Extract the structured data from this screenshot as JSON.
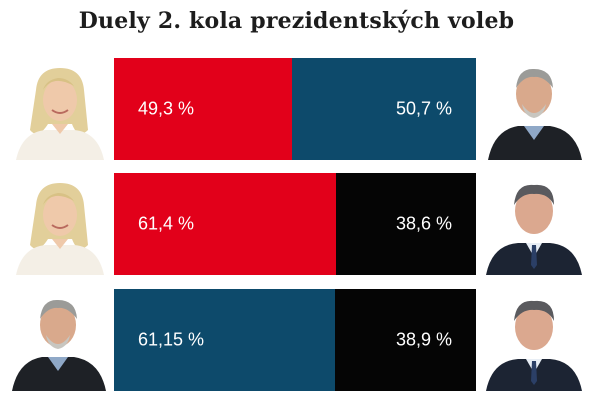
{
  "title": "Duely 2. kola prezidentských voleb",
  "colors": {
    "red": "#e2001a",
    "blue": "#0d4a6b",
    "black": "#050505"
  },
  "chart_data": [
    {
      "type": "bar",
      "orientation": "horizontal-stacked",
      "series": [
        {
          "label": "49,3 %",
          "value": 49.3,
          "color": "#e2001a"
        },
        {
          "label": "50,7 %",
          "value": 50.7,
          "color": "#0d4a6b"
        }
      ]
    },
    {
      "type": "bar",
      "orientation": "horizontal-stacked",
      "series": [
        {
          "label": "61,4 %",
          "value": 61.4,
          "color": "#e2001a"
        },
        {
          "label": "38,6 %",
          "value": 38.6,
          "color": "#050505"
        }
      ]
    },
    {
      "type": "bar",
      "orientation": "horizontal-stacked",
      "series": [
        {
          "label": "61,15 %",
          "value": 61.15,
          "color": "#0d4a6b"
        },
        {
          "label": "38,9 %",
          "value": 38.9,
          "color": "#050505"
        }
      ]
    }
  ]
}
